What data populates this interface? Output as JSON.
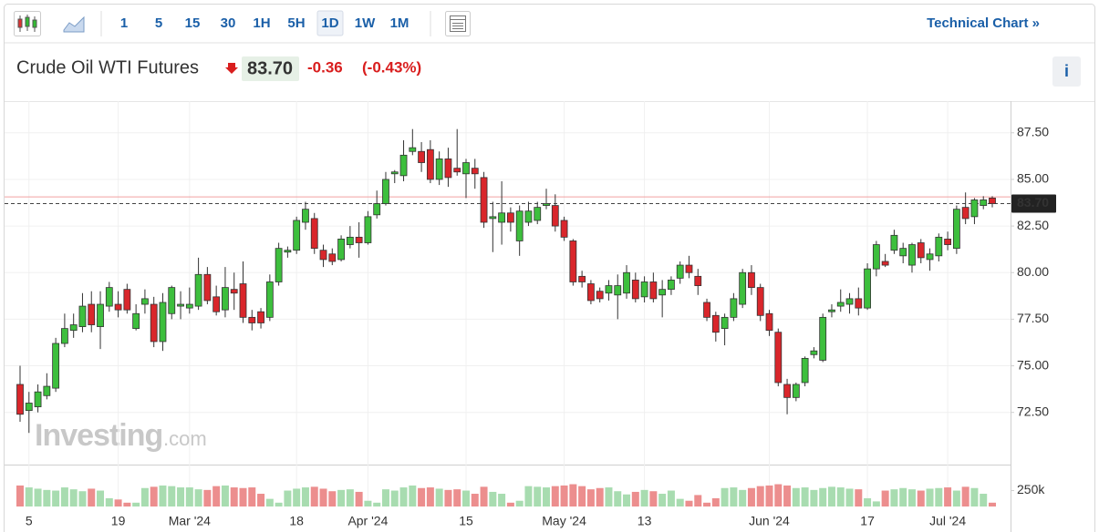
{
  "toolbar": {
    "intervals": [
      "1",
      "5",
      "15",
      "30",
      "1H",
      "5H",
      "1D",
      "1W",
      "1M"
    ],
    "active": 6,
    "link": "Technical Chart »"
  },
  "header": {
    "name": "Crude Oil WTI Futures",
    "price": "83.70",
    "change": "-0.36",
    "change_pct": "(-0.43%)",
    "info": "i"
  },
  "watermark": {
    "brand": "Investing",
    "suffix": ".com"
  },
  "chart_data": {
    "type": "candlestick",
    "categories": [
      null,
      "5",
      null,
      null,
      null,
      null,
      null,
      null,
      null,
      null,
      null,
      "19",
      null,
      null,
      null,
      null,
      null,
      null,
      null,
      "Mar '24",
      null,
      null,
      null,
      null,
      null,
      null,
      null,
      null,
      null,
      null,
      null,
      "18",
      null,
      null,
      null,
      null,
      null,
      null,
      null,
      "Apr '24",
      null,
      null,
      null,
      null,
      null,
      null,
      null,
      null,
      null,
      null,
      "15",
      null,
      null,
      null,
      null,
      null,
      null,
      null,
      null,
      null,
      null,
      "May '24",
      null,
      null,
      null,
      null,
      null,
      null,
      null,
      null,
      "13",
      null,
      null,
      null,
      null,
      null,
      null,
      null,
      null,
      null,
      null,
      null,
      null,
      null,
      "Jun '24",
      null,
      null,
      null,
      null,
      null,
      null,
      null,
      null,
      null,
      null,
      "17",
      null,
      null,
      null,
      null,
      null,
      null,
      null,
      null,
      "Jul '24",
      null,
      null,
      null,
      null,
      null
    ],
    "open": [
      74.0,
      72.6,
      72.8,
      73.4,
      73.8,
      76.2,
      76.9,
      77.1,
      78.3,
      77.1,
      78.2,
      78.3,
      79.1,
      77.0,
      78.3,
      78.3,
      76.3,
      77.8,
      78.2,
      78.1,
      78.2,
      79.9,
      78.7,
      78.0,
      79.1,
      79.4,
      77.6,
      77.9,
      77.6,
      79.5,
      81.1,
      81.2,
      82.7,
      82.9,
      81.2,
      81.0,
      80.7,
      81.5,
      81.9,
      81.6,
      83.1,
      83.7,
      85.3,
      85.2,
      86.5,
      86.5,
      86.6,
      85.0,
      86.1,
      85.6,
      85.3,
      85.6,
      85.1,
      82.9,
      82.7,
      83.2,
      81.7,
      82.7,
      82.8,
      83.6,
      83.6,
      82.8,
      81.7,
      79.8,
      79.4,
      79.0,
      78.9,
      78.8,
      78.9,
      79.6,
      78.7,
      79.5,
      78.8,
      79.1,
      79.7,
      80.4,
      79.8,
      78.4,
      77.7,
      77.0,
      77.6,
      78.3,
      80.0,
      79.2,
      77.8,
      76.8,
      74.0,
      73.3,
      74.1,
      75.6,
      75.3,
      77.9,
      78.2,
      78.3,
      78.6,
      78.1,
      80.2,
      80.6,
      81.2,
      80.9,
      80.4,
      81.6,
      80.7,
      80.9,
      81.8,
      81.3,
      83.5,
      83.0,
      83.6,
      84.0
    ],
    "high": [
      75.0,
      73.6,
      74.0,
      74.6,
      76.5,
      77.8,
      77.8,
      78.9,
      79.0,
      79.0,
      79.5,
      79.0,
      79.4,
      78.3,
      79.1,
      78.7,
      78.9,
      79.3,
      79.0,
      79.2,
      80.8,
      80.3,
      79.3,
      80.3,
      80.0,
      80.6,
      78.0,
      78.1,
      79.9,
      81.6,
      81.4,
      83.0,
      83.8,
      83.2,
      81.5,
      81.3,
      82.0,
      82.5,
      82.7,
      83.3,
      84.4,
      85.4,
      85.5,
      87.1,
      87.7,
      87.0,
      87.1,
      86.5,
      86.7,
      87.7,
      86.1,
      86.1,
      85.4,
      83.8,
      84.9,
      83.5,
      83.6,
      83.8,
      83.8,
      84.5,
      84.2,
      83.0,
      81.8,
      80.1,
      79.6,
      79.2,
      79.6,
      79.9,
      80.4,
      80.0,
      79.8,
      80.0,
      79.6,
      79.8,
      80.6,
      80.9,
      80.2,
      78.6,
      77.9,
      77.8,
      78.9,
      80.2,
      80.4,
      79.4,
      78.0,
      77.0,
      74.3,
      74.1,
      75.5,
      76.0,
      77.8,
      78.3,
      79.1,
      78.9,
      79.2,
      80.5,
      81.7,
      81.0,
      82.3,
      81.6,
      81.6,
      81.8,
      81.3,
      82.1,
      82.2,
      83.6,
      84.3,
      84.0,
      84.1,
      84.1
    ],
    "low": [
      72.0,
      71.4,
      72.5,
      73.2,
      73.6,
      76.0,
      76.5,
      76.8,
      76.8,
      75.9,
      77.9,
      77.6,
      77.8,
      76.9,
      77.8,
      76.0,
      75.8,
      77.5,
      77.5,
      77.8,
      78.0,
      78.3,
      77.7,
      77.6,
      78.0,
      77.3,
      76.9,
      77.0,
      77.4,
      79.3,
      80.8,
      81.0,
      82.3,
      81.0,
      80.3,
      80.4,
      80.6,
      81.3,
      80.8,
      81.5,
      82.9,
      83.6,
      84.8,
      84.9,
      86.3,
      85.4,
      84.8,
      84.7,
      84.6,
      85.2,
      84.0,
      84.5,
      82.4,
      81.1,
      81.5,
      82.2,
      80.9,
      82.5,
      82.6,
      83.4,
      82.2,
      81.7,
      79.3,
      79.2,
      78.3,
      78.4,
      78.5,
      77.5,
      78.6,
      78.4,
      78.4,
      78.4,
      77.6,
      78.8,
      79.4,
      79.7,
      78.8,
      77.4,
      76.3,
      76.1,
      77.4,
      78.1,
      78.8,
      77.4,
      76.6,
      73.9,
      72.4,
      73.1,
      73.9,
      75.4,
      75.2,
      77.6,
      77.9,
      77.8,
      77.7,
      78.0,
      79.8,
      80.3,
      81.0,
      80.5,
      80.0,
      80.5,
      80.1,
      80.6,
      81.2,
      81.0,
      82.6,
      82.6,
      83.4,
      83.5
    ],
    "close": [
      72.4,
      73.0,
      73.6,
      73.9,
      76.2,
      77.0,
      77.2,
      78.2,
      77.2,
      78.3,
      79.2,
      78.0,
      78.0,
      77.8,
      78.6,
      76.3,
      78.4,
      79.2,
      78.3,
      78.3,
      79.9,
      78.5,
      77.9,
      79.2,
      78.9,
      77.6,
      77.3,
      77.3,
      79.5,
      81.3,
      81.2,
      82.8,
      83.4,
      81.3,
      80.7,
      80.6,
      81.8,
      81.9,
      81.6,
      83.0,
      83.7,
      85.0,
      85.4,
      86.3,
      86.7,
      85.9,
      85.0,
      86.1,
      85.1,
      85.4,
      85.9,
      85.3,
      82.7,
      83.0,
      83.2,
      82.7,
      83.3,
      83.3,
      83.5,
      83.7,
      82.5,
      81.9,
      79.5,
      79.5,
      78.5,
      78.6,
      79.3,
      79.3,
      80.0,
      78.6,
      79.5,
      78.6,
      79.1,
      79.6,
      80.4,
      80.0,
      79.3,
      77.6,
      76.8,
      77.6,
      78.6,
      80.0,
      79.2,
      77.7,
      76.9,
      74.1,
      73.3,
      74.0,
      75.4,
      75.8,
      77.6,
      78.0,
      78.4,
      78.6,
      78.1,
      80.2,
      81.5,
      80.4,
      82.0,
      81.3,
      81.5,
      80.8,
      81.0,
      81.9,
      81.5,
      83.4,
      82.9,
      83.9,
      83.9,
      83.7
    ],
    "volume": [
      330000,
      300000,
      280000,
      260000,
      250000,
      300000,
      270000,
      240000,
      280000,
      250000,
      130000,
      110000,
      60000,
      60000,
      290000,
      310000,
      330000,
      320000,
      300000,
      300000,
      270000,
      260000,
      320000,
      330000,
      300000,
      290000,
      300000,
      200000,
      120000,
      60000,
      250000,
      280000,
      300000,
      310000,
      280000,
      240000,
      260000,
      270000,
      230000,
      90000,
      60000,
      270000,
      250000,
      300000,
      330000,
      290000,
      300000,
      280000,
      260000,
      270000,
      250000,
      200000,
      310000,
      230000,
      200000,
      60000,
      90000,
      320000,
      310000,
      300000,
      320000,
      330000,
      350000,
      320000,
      270000,
      290000,
      300000,
      240000,
      190000,
      230000,
      260000,
      240000,
      200000,
      250000,
      120000,
      90000,
      180000,
      60000,
      130000,
      290000,
      300000,
      260000,
      290000,
      320000,
      330000,
      350000,
      330000,
      290000,
      300000,
      260000,
      290000,
      310000,
      300000,
      280000,
      270000,
      130000,
      80000,
      250000,
      270000,
      290000,
      270000,
      250000,
      280000,
      290000,
      300000,
      250000,
      310000,
      290000,
      200000,
      60000
    ],
    "up_color": "#3dbf3d",
    "down_color": "#d9262b",
    "up_volume_color": "#a8dcb0",
    "down_volume_color": "#ec8e8e",
    "ylim": [
      69.7,
      89.2
    ],
    "yticks": [
      {
        "value": 72.5,
        "label": "72.50"
      },
      {
        "value": 75,
        "label": "75.00"
      },
      {
        "value": 77.5,
        "label": "77.50"
      },
      {
        "value": 80,
        "label": "80.00"
      },
      {
        "value": 82.5,
        "label": "82.50"
      },
      {
        "value": 85,
        "label": "85.00"
      },
      {
        "value": 87.5,
        "label": "87.50"
      }
    ],
    "volume_lim": [
      0,
      630000
    ],
    "volume_ticks": [
      {
        "value": 250000,
        "label": "250k"
      }
    ],
    "last_price": {
      "value": 83.7,
      "label": "83.70"
    },
    "prev_close": 84.06,
    "grid": true
  }
}
